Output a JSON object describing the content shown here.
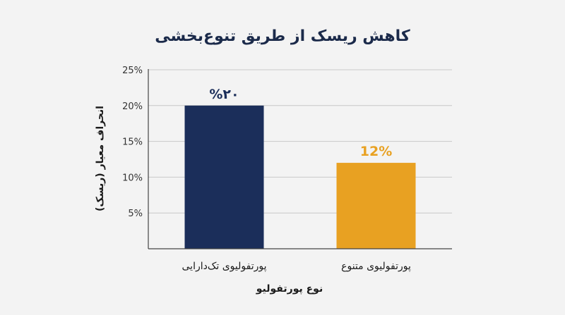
{
  "chart_data": {
    "type": "bar",
    "title": "کاهش ریسک از طریق تنوع‌بخشی",
    "xlabel": "نوع پورتفولیو",
    "ylabel": "انحراف معیار (ریسک)",
    "categories": [
      "پورتفولیوی تک‌دارایی",
      "پورتفولیوی متنوع"
    ],
    "values": [
      20,
      12
    ],
    "data_labels": [
      "%۲۰",
      "12%"
    ],
    "bar_colors": [
      "#1b2e5a",
      "#e8a122"
    ],
    "label_colors": [
      "#1b2e5a",
      "#e8a122"
    ],
    "ylim": [
      0,
      25
    ],
    "yticks": [
      5,
      10,
      15,
      20,
      25
    ],
    "ytick_labels": [
      "5%",
      "10%",
      "15%",
      "20%",
      "25%"
    ],
    "grid": true
  }
}
